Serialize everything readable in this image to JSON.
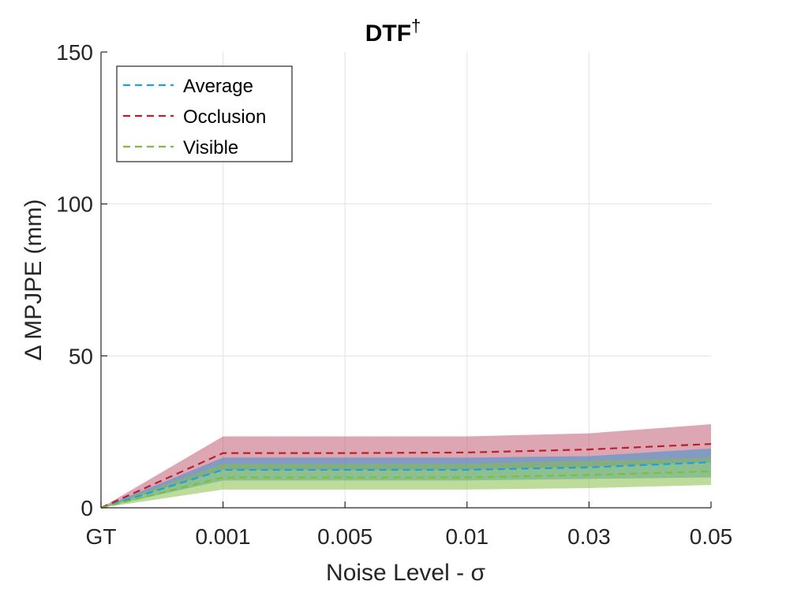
{
  "chart_data": {
    "type": "line",
    "title": "DTF",
    "title_superscript": "†",
    "xlabel": "Noise Level - σ",
    "ylabel": "Δ MPJPE (mm)",
    "categories": [
      "GT",
      "0.001",
      "0.005",
      "0.01",
      "0.03",
      "0.05"
    ],
    "ylim": [
      0,
      150
    ],
    "yticks": [
      "0",
      "50",
      "100",
      "150"
    ],
    "grid": true,
    "legend_position": "top-left",
    "series": [
      {
        "name": "Average",
        "color": "#1f9fe0",
        "band_color": "#3a8fd0",
        "values": [
          0,
          12.5,
          12.5,
          12.5,
          13.3,
          15
        ],
        "lower": [
          0,
          9,
          9,
          9,
          9.5,
          10
        ],
        "upper": [
          0,
          16.5,
          16.5,
          16.5,
          17,
          19.5
        ]
      },
      {
        "name": "Occlusion",
        "color": "#b8202e",
        "band_color": "#b23a54",
        "values": [
          0,
          18,
          18,
          18.2,
          19.2,
          21
        ],
        "lower": [
          0,
          12.5,
          12.5,
          12.5,
          13.5,
          15
        ],
        "upper": [
          0,
          23.5,
          23.5,
          23.5,
          24.5,
          27.5
        ]
      },
      {
        "name": "Visible",
        "color": "#7cbf3e",
        "band_color": "#86c04a",
        "values": [
          0,
          10,
          10,
          10,
          10.8,
          12
        ],
        "lower": [
          0,
          6,
          6,
          6,
          6.5,
          7.5
        ],
        "upper": [
          0,
          14.5,
          14.5,
          14.5,
          15.5,
          16.5
        ]
      }
    ]
  }
}
